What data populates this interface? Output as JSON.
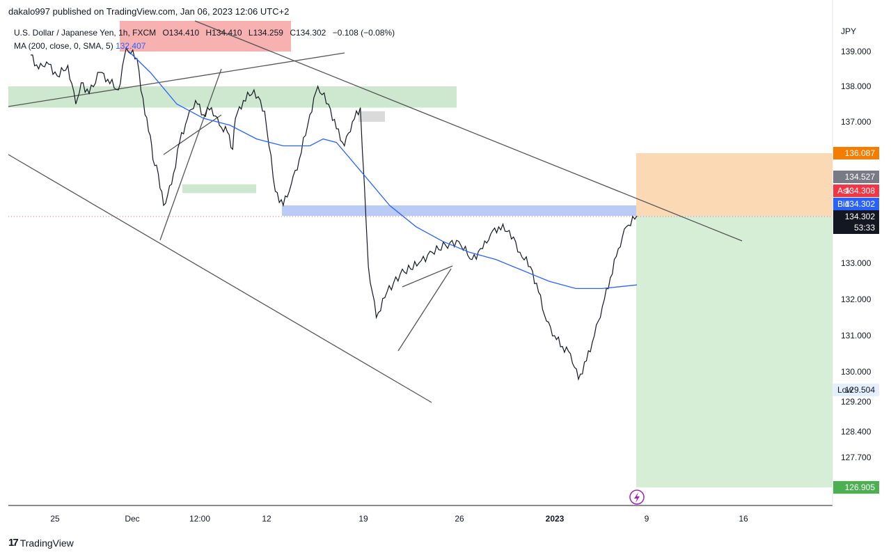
{
  "header": {
    "attribution": "dakalo997 published on TradingView.com, Jan 06, 2023 12:06 UTC+2"
  },
  "legend": {
    "symbol": "U.S. Dollar / Japanese Yen, 1h, FXCM",
    "open": "O134.410",
    "high": "H134.410",
    "low": "L134.259",
    "close": "C134.302",
    "change": "−0.108 (−0.08%)",
    "ma_label": "MA (200, close, 0, SMA, 5)",
    "ma_value": "132.407"
  },
  "currency": "JPY",
  "footer": {
    "brand": "TradingView",
    "logo": "tv-logo-icon"
  },
  "chart_data": {
    "type": "line",
    "title": "",
    "xlabel": "",
    "ylabel": "",
    "ylim": [
      126.5,
      139.8
    ],
    "x_ticks": [
      "25",
      "Dec",
      "12:00",
      "12",
      "19",
      "26",
      "2023",
      "9",
      "16"
    ],
    "y_ticks": [
      "139.000",
      "138.000",
      "137.000",
      "133.000",
      "132.000",
      "131.000",
      "130.000",
      "129.200",
      "128.400",
      "127.700"
    ],
    "grid": false,
    "series": [
      {
        "kind": "price",
        "color": "#131722",
        "x": [
          0,
          3,
          6,
          10,
          14,
          17,
          19,
          22,
          26,
          29,
          33,
          36,
          40,
          43,
          45,
          46,
          48,
          50,
          53,
          56,
          59,
          62,
          65,
          68,
          71,
          74,
          76,
          77,
          80,
          84,
          88,
          92,
          95,
          98,
          101,
          105,
          108,
          112,
          115,
          118,
          121,
          124,
          127,
          130,
          134,
          139,
          146,
          151,
          156,
          161
        ],
        "y": [
          138.9,
          138.5,
          138.7,
          138.3,
          138.6,
          137.5,
          138.1,
          137.8,
          138.4,
          138.2,
          137.9,
          139.1,
          138.8,
          137.2,
          136.6,
          135.9,
          135.5,
          134.6,
          135.2,
          136.4,
          137.1,
          137.6,
          137.2,
          137.4,
          136.9,
          136.7,
          136.2,
          137.1,
          137.6,
          137.9,
          137.3,
          135.0,
          134.6,
          135.2,
          135.9,
          137.2,
          138.0,
          137.5,
          136.8,
          136.3,
          137.0,
          137.4,
          132.9,
          131.5,
          132.2,
          132.7,
          133.0,
          133.3,
          133.5,
          133.6
        ]
      }
    ],
    "price_x_index": [
      0,
      3,
      6,
      10,
      14,
      17,
      19,
      22,
      26,
      29,
      33,
      36,
      40,
      43,
      45,
      46,
      48,
      50,
      53,
      56,
      59,
      62,
      65,
      68,
      71,
      74,
      76,
      77,
      80,
      84,
      88,
      92,
      95,
      98,
      101,
      105,
      108,
      112,
      115,
      118,
      121,
      124,
      127,
      130,
      134,
      139,
      146,
      151,
      156,
      161
    ],
    "price_series_2": {
      "x": [
        161,
        166,
        170,
        173,
        176,
        180,
        184,
        188,
        191,
        194,
        197,
        200,
        203,
        206,
        209,
        212,
        215,
        218,
        221,
        224,
        228
      ],
      "y": [
        133.6,
        133.1,
        133.4,
        133.8,
        134.0,
        133.9,
        133.3,
        132.9,
        132.2,
        131.4,
        131.0,
        130.7,
        130.5,
        129.8,
        130.3,
        131.0,
        131.8,
        132.6,
        133.4,
        134.0,
        134.3
      ]
    },
    "ma_series": {
      "color": "#2962ff",
      "x": [
        37,
        45,
        55,
        65,
        75,
        85,
        95,
        105,
        110,
        115,
        125,
        135,
        145,
        155,
        165,
        175,
        185,
        195,
        205,
        215,
        228
      ],
      "y": [
        139.0,
        138.4,
        137.5,
        137.1,
        136.9,
        136.5,
        136.3,
        136.3,
        136.5,
        136.4,
        135.5,
        134.6,
        134.0,
        133.6,
        133.3,
        133.1,
        132.8,
        132.5,
        132.3,
        132.3,
        132.4
      ]
    },
    "zones": [
      {
        "color": "#f6a8a8",
        "y1": 139.8,
        "y2": 139.0
      },
      {
        "color": "#c8e6c9",
        "y1": 138.0,
        "y2": 137.4
      },
      {
        "color": "#c8e6c9",
        "y1": 135.2,
        "y2": 134.95
      },
      {
        "color": "#b3c5f5",
        "y1": 134.6,
        "y2": 134.3
      },
      {
        "color": "#d6d6d6",
        "y1": 137.3,
        "y2": 137.0
      }
    ],
    "position": {
      "target_zone_color": "#fbd9b4",
      "stop_zone_color": "#d6eed6",
      "entry": 134.302,
      "stop": 136.087,
      "target": 126.905
    }
  },
  "price_tags": [
    {
      "value": "136.087",
      "bg": "#f57c00",
      "fg": "#ffffff",
      "label": ""
    },
    {
      "value": "134.527",
      "bg": "#787b86",
      "fg": "#ffffff",
      "label": ""
    },
    {
      "value": "134.308",
      "bg": "#f23645",
      "fg": "#ffffff",
      "label": "Ask"
    },
    {
      "value": "134.302",
      "bg": "#2962ff",
      "fg": "#ffffff",
      "label": "Bid"
    },
    {
      "value": "134.302",
      "bg": "#131722",
      "fg": "#ffffff",
      "label": "",
      "sub": "53:33"
    },
    {
      "value": "129.504",
      "bg": "#e3effd",
      "fg": "#131722",
      "label": "Low"
    },
    {
      "value": "126.905",
      "bg": "#4caf50",
      "fg": "#ffffff",
      "label": ""
    }
  ],
  "marks": {
    "event_icon": "lightning-icon"
  }
}
